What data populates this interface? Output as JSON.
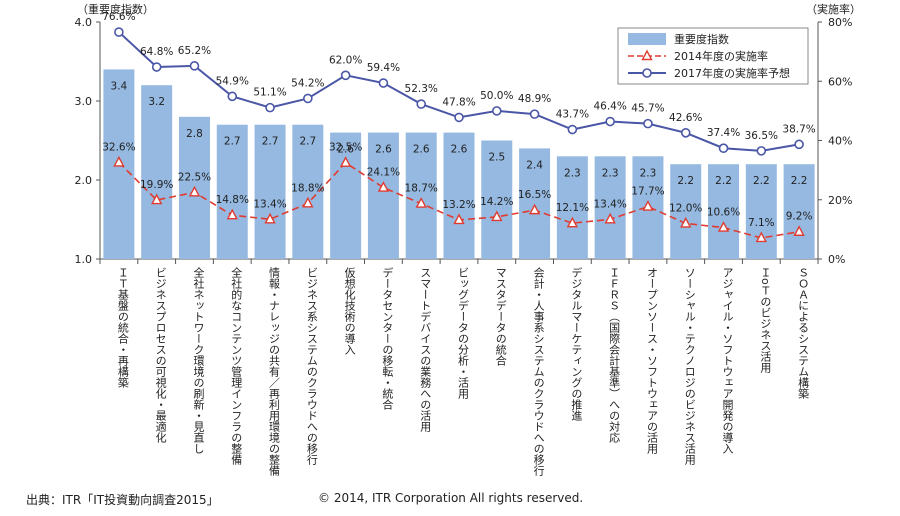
{
  "chart_data": {
    "type": "bar+line",
    "left_axis_title": "（重要度指数）",
    "right_axis_title": "（実施率）",
    "left_ylim": [
      1.0,
      4.0
    ],
    "left_ticks": [
      "1.0",
      "2.0",
      "3.0",
      "4.0"
    ],
    "right_ylim": [
      0,
      80
    ],
    "right_ticks": [
      "0%",
      "20%",
      "40%",
      "60%",
      "80%"
    ],
    "categories": [
      "ＩＴ基盤の統合・再構築",
      "ビジネスプロセスの可視化・最適化",
      "全社ネットワーク環境の刷新・見直し",
      "全社的なコンテンツ管理インフラの整備",
      "情報・ナレッジの共有／再利用環境の整備",
      "ビジネス系システムのクラウドへの移行",
      "仮想化技術の導入",
      "データセンターの移転・統合",
      "スマートデバイスの業務への活用",
      "ビッグデータの分析・活用",
      "マスタデータの統合",
      "会計・人事系システムのクラウドへの移行",
      "デジタルマーケティングの推進",
      "ＩＦＲＳ（国際会計基準）への対応",
      "オープンソース・ソフトウェアの活用",
      "ソーシャル・テクノロジのビジネス活用",
      "アジャイル・ソフトウェア開発の導入",
      "ＩoＴのビジネス活用",
      "ＳＯＡによるシステム構築"
    ],
    "series": [
      {
        "name": "重要度指数",
        "kind": "bar",
        "axis": "left",
        "color": "#95B9E1",
        "values": [
          3.4,
          3.2,
          2.8,
          2.7,
          2.7,
          2.7,
          2.6,
          2.6,
          2.6,
          2.6,
          2.5,
          2.4,
          2.3,
          2.3,
          2.3,
          2.2,
          2.2,
          2.2,
          2.2
        ],
        "labels": [
          "3.4",
          "3.2",
          "2.8",
          "2.7",
          "2.7",
          "2.7",
          "2.6",
          "2.6",
          "2.6",
          "2.6",
          "2.5",
          "2.4",
          "2.3",
          "2.3",
          "2.3",
          "2.2",
          "2.2",
          "2.2",
          "2.2"
        ]
      },
      {
        "name": "2014年度の実施率",
        "kind": "line",
        "axis": "right",
        "color": "#E03C31",
        "dash": true,
        "marker": "triangle",
        "values": [
          32.6,
          19.9,
          22.5,
          14.8,
          13.4,
          18.8,
          32.5,
          24.1,
          18.7,
          13.2,
          14.2,
          16.5,
          12.1,
          13.4,
          17.7,
          12.0,
          10.6,
          7.1,
          9.2
        ],
        "labels": [
          "32.6%",
          "19.9%",
          "22.5%",
          "14.8%",
          "13.4%",
          "18.8%",
          "32.5%",
          "24.1%",
          "18.7%",
          "13.2%",
          "14.2%",
          "16.5%",
          "12.1%",
          "13.4%",
          "17.7%",
          "12.0%",
          "10.6%",
          "7.1%",
          "9.2%"
        ]
      },
      {
        "name": "2017年度の実施率予想",
        "kind": "line",
        "axis": "right",
        "color": "#4A56A6",
        "dash": false,
        "marker": "circle",
        "values": [
          76.6,
          64.8,
          65.2,
          54.9,
          51.1,
          54.2,
          62.0,
          59.4,
          52.3,
          47.8,
          50.0,
          48.9,
          43.7,
          46.4,
          45.7,
          42.6,
          37.4,
          36.5,
          38.7
        ],
        "labels": [
          "76.6%",
          "64.8%",
          "65.2%",
          "54.9%",
          "51.1%",
          "54.2%",
          "62.0%",
          "59.4%",
          "52.3%",
          "47.8%",
          "50.0%",
          "48.9%",
          "43.7%",
          "46.4%",
          "45.7%",
          "42.6%",
          "37.4%",
          "36.5%",
          "38.7%"
        ]
      }
    ],
    "legend_position": "top-right"
  },
  "footer": {
    "source": "出典：ITR「IT投資動向調査2015」",
    "copyright": "© 2014, ITR Corporation  All rights reserved."
  }
}
